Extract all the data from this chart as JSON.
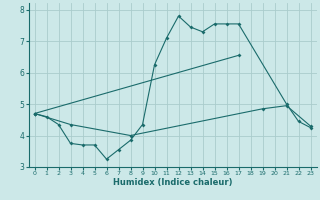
{
  "xlabel": "Humidex (Indice chaleur)",
  "xlim": [
    -0.5,
    23.5
  ],
  "ylim": [
    3,
    8.2
  ],
  "background_color": "#cce8e8",
  "grid_color": "#aacccc",
  "line_color": "#1a6b6b",
  "xticks": [
    0,
    1,
    2,
    3,
    4,
    5,
    6,
    7,
    8,
    9,
    10,
    11,
    12,
    13,
    14,
    15,
    16,
    17,
    18,
    19,
    20,
    21,
    22,
    23
  ],
  "yticks": [
    3,
    4,
    5,
    6,
    7,
    8
  ],
  "line1_x": [
    0,
    1,
    2,
    3,
    4,
    5,
    6,
    7,
    8,
    9,
    10,
    11,
    12,
    13,
    14,
    15,
    16,
    17,
    21,
    22,
    23
  ],
  "line1_y": [
    4.7,
    4.6,
    4.35,
    3.75,
    3.7,
    3.7,
    3.25,
    3.55,
    3.85,
    4.35,
    6.25,
    7.1,
    7.8,
    7.45,
    7.3,
    7.55,
    7.55,
    7.55,
    5.0,
    4.45,
    4.25
  ],
  "line2_x": [
    0,
    17
  ],
  "line2_y": [
    4.7,
    6.55
  ],
  "line3_x": [
    0,
    3,
    8,
    19,
    21,
    23
  ],
  "line3_y": [
    4.7,
    4.35,
    4.0,
    4.85,
    4.95,
    4.3
  ]
}
